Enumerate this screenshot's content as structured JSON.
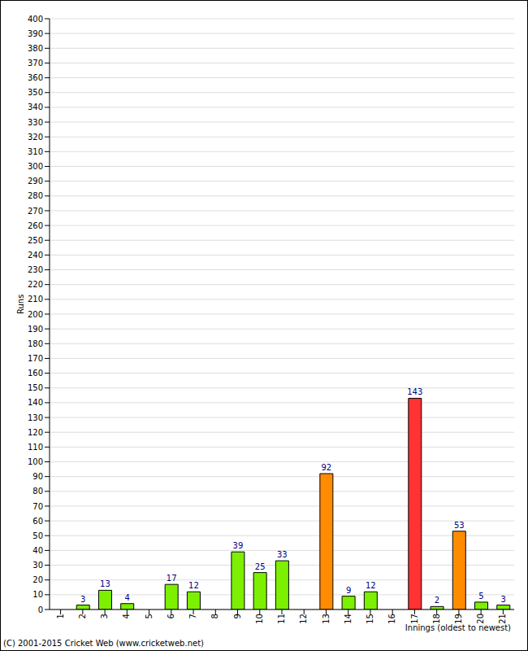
{
  "chart_data": {
    "type": "bar",
    "categories": [
      "1",
      "2",
      "3",
      "4",
      "5",
      "6",
      "7",
      "8",
      "9",
      "10",
      "11",
      "12",
      "13",
      "14",
      "15",
      "16",
      "17",
      "18",
      "19",
      "20",
      "21"
    ],
    "values": [
      0,
      3,
      13,
      4,
      0,
      17,
      12,
      0,
      39,
      25,
      33,
      0,
      92,
      9,
      12,
      0,
      143,
      2,
      53,
      5,
      3
    ],
    "colors": [
      "#7cf000",
      "#7cf000",
      "#7cf000",
      "#7cf000",
      "#7cf000",
      "#7cf000",
      "#7cf000",
      "#7cf000",
      "#7cf000",
      "#7cf000",
      "#7cf000",
      "#7cf000",
      "#ff8c00",
      "#7cf000",
      "#7cf000",
      "#7cf000",
      "#ff3333",
      "#7cf000",
      "#ff8c00",
      "#7cf000",
      "#7cf000"
    ],
    "x_label": "Innings (oldest to newest)",
    "y_label": "Runs",
    "annotations": [
      "(C) 2001-2015 Cricket Web (www.cricketweb.net)"
    ],
    "ylim": [
      0,
      400
    ],
    "yticks": [
      0,
      10,
      20,
      30,
      40,
      50,
      60,
      70,
      80,
      90,
      100,
      110,
      120,
      130,
      140,
      150,
      160,
      170,
      180,
      190,
      200,
      210,
      220,
      230,
      240,
      250,
      260,
      270,
      280,
      290,
      300,
      310,
      320,
      330,
      340,
      350,
      360,
      370,
      380,
      390,
      400
    ],
    "grid": true,
    "data_labels": true
  }
}
